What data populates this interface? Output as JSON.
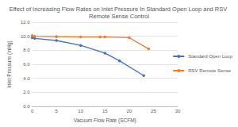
{
  "chart_data": {
    "type": "line",
    "title": "Effect of Increasing Flow Rates on Inlet Pressure In Standard Open Loop and RSV Remote Sense Control",
    "x_label": "Vacuum Flow Rate (SCFM)",
    "y_label": "Inlet Pressure (inHg)",
    "series": [
      {
        "name": "Standard Open Loop",
        "color": "#4472c4",
        "marker": "circle",
        "x": [
          0,
          0.5,
          5,
          10,
          15,
          18,
          23
        ],
        "values": [
          9.8,
          9.7,
          9.4,
          8.7,
          7.6,
          6.5,
          4.4
        ]
      },
      {
        "name": "RSV Remote Sense",
        "color": "#ed7d31",
        "marker": "circle",
        "x": [
          0,
          0.5,
          5,
          10,
          14,
          15,
          20,
          24
        ],
        "values": [
          10.1,
          10.0,
          9.95,
          9.9,
          9.9,
          9.9,
          9.8,
          8.2
        ]
      }
    ],
    "xlim": [
      0,
      30
    ],
    "xticks": [
      0,
      5,
      10,
      15,
      20,
      25,
      30
    ],
    "ylim": [
      0,
      12
    ],
    "yticks": [
      {
        "value": 0,
        "label": "0.0"
      },
      {
        "value": 2,
        "label": "2.0"
      },
      {
        "value": 4,
        "label": "4.0"
      },
      {
        "value": 6,
        "label": "6.0"
      },
      {
        "value": 8,
        "label": "8.0"
      },
      {
        "value": 10,
        "label": "10.0"
      },
      {
        "value": 12,
        "label": "12.0"
      }
    ],
    "grid": true,
    "legend": "right"
  }
}
